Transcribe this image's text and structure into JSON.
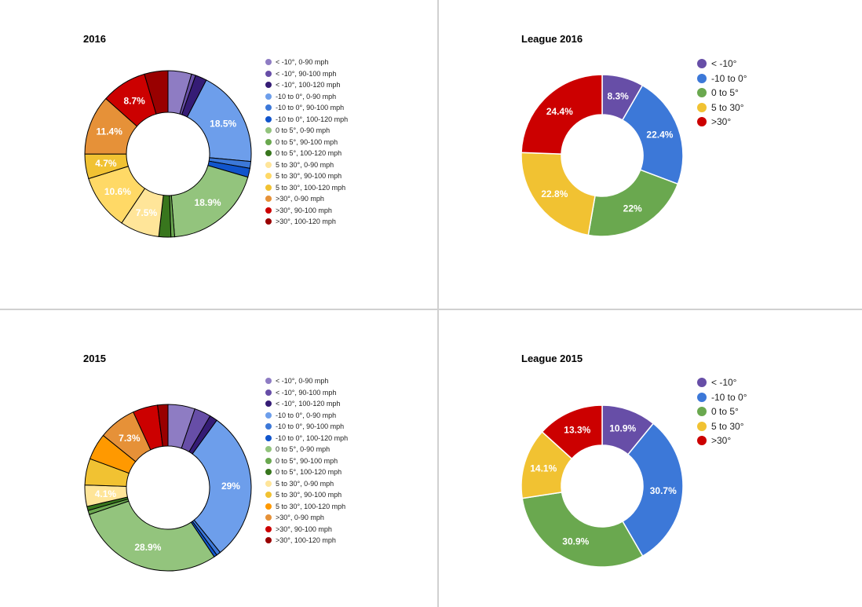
{
  "chart_data": [
    {
      "type": "pie",
      "donut": true,
      "title": "2016",
      "legend_position": "right",
      "slices": [
        {
          "label": "< -10°, 0-90 mph",
          "value": 4.5,
          "color": "#8e7cc3",
          "data_label": ""
        },
        {
          "label": "< -10°, 90-100 mph",
          "value": 0.8,
          "color": "#674ea7",
          "data_label": ""
        },
        {
          "label": "< -10°, 100-120 mph",
          "value": 2.2,
          "color": "#351c75",
          "data_label": ""
        },
        {
          "label": "-10 to 0°, 0-90 mph",
          "value": 18.5,
          "color": "#6d9eeb",
          "data_label": "18.5%"
        },
        {
          "label": "-10 to 0°, 90-100 mph",
          "value": 1.3,
          "color": "#3c78d8",
          "data_label": ""
        },
        {
          "label": "-10 to 0°, 100-120 mph",
          "value": 1.7,
          "color": "#1155cc",
          "data_label": ""
        },
        {
          "label": "0 to 5°, 0-90 mph",
          "value": 18.9,
          "color": "#93c47d",
          "data_label": "18.9%"
        },
        {
          "label": "0 to 5°, 90-100 mph",
          "value": 0.7,
          "color": "#6aa84f",
          "data_label": ""
        },
        {
          "label": "0 to 5°, 100-120 mph",
          "value": 2.3,
          "color": "#38761d",
          "data_label": ""
        },
        {
          "label": "5 to 30°, 0-90 mph",
          "value": 7.5,
          "color": "#ffe599",
          "data_label": "7.5%"
        },
        {
          "label": "5 to 30°, 90-100 mph",
          "value": 10.6,
          "color": "#ffd966",
          "data_label": "10.6%"
        },
        {
          "label": "5 to 30°, 100-120 mph",
          "value": 4.7,
          "color": "#f1c232",
          "data_label": "4.7%"
        },
        {
          "label": ">30°, 0-90 mph",
          "value": 11.4,
          "color": "#e69138",
          "data_label": "11.4%"
        },
        {
          "label": ">30°, 90-100 mph",
          "value": 8.7,
          "color": "#cc0000",
          "data_label": "8.7%"
        },
        {
          "label": ">30°, 100-120 mph",
          "value": 4.5,
          "color": "#990000",
          "data_label": ""
        }
      ]
    },
    {
      "type": "pie",
      "donut": true,
      "title": "League 2016",
      "legend_position": "right",
      "slices": [
        {
          "label": "< -10°",
          "value": 8.3,
          "color": "#674ea7",
          "data_label": "8.3%"
        },
        {
          "label": "-10 to 0°",
          "value": 22.4,
          "color": "#3c78d8",
          "data_label": "22.4%"
        },
        {
          "label": "0 to 5°",
          "value": 22,
          "color": "#6aa84f",
          "data_label": "22%"
        },
        {
          "label": "5 to 30°",
          "value": 22.8,
          "color": "#f1c232",
          "data_label": "22.8%"
        },
        {
          "label": ">30°",
          "value": 24.4,
          "color": "#cc0000",
          "data_label": "24.4%"
        }
      ]
    },
    {
      "type": "pie",
      "donut": true,
      "title": "2015",
      "legend_position": "right",
      "slices": [
        {
          "label": "< -10°, 0-90 mph",
          "value": 5.2,
          "color": "#8e7cc3",
          "data_label": ""
        },
        {
          "label": "< -10°, 90-100 mph",
          "value": 3.2,
          "color": "#674ea7",
          "data_label": ""
        },
        {
          "label": "< -10°, 100-120 mph",
          "value": 1.5,
          "color": "#351c75",
          "data_label": ""
        },
        {
          "label": "-10 to 0°, 0-90 mph",
          "value": 29,
          "color": "#6d9eeb",
          "data_label": "29%"
        },
        {
          "label": "-10 to 0°, 90-100 mph",
          "value": 0.8,
          "color": "#3c78d8",
          "data_label": ""
        },
        {
          "label": "-10 to 0°, 100-120 mph",
          "value": 0.6,
          "color": "#1155cc",
          "data_label": ""
        },
        {
          "label": "0 to 5°, 0-90 mph",
          "value": 28.9,
          "color": "#93c47d",
          "data_label": "28.9%"
        },
        {
          "label": "0 to 5°, 90-100 mph",
          "value": 0.8,
          "color": "#6aa84f",
          "data_label": ""
        },
        {
          "label": "0 to 5°, 100-120 mph",
          "value": 0.8,
          "color": "#38761d",
          "data_label": ""
        },
        {
          "label": "5 to 30°, 0-90 mph",
          "value": 4.1,
          "color": "#ffe599",
          "data_label": "4.1%"
        },
        {
          "label": "5 to 30°, 90-100 mph",
          "value": 5.1,
          "color": "#f1c232",
          "data_label": ""
        },
        {
          "label": "5 to 30°, 100-120 mph",
          "value": 5.1,
          "color": "#ff9900",
          "data_label": ""
        },
        {
          "label": ">30°, 0-90 mph",
          "value": 7.3,
          "color": "#e69138",
          "data_label": "7.3%"
        },
        {
          "label": ">30°, 90-100 mph",
          "value": 4.8,
          "color": "#cc0000",
          "data_label": ""
        },
        {
          "label": ">30°, 100-120 mph",
          "value": 2.0,
          "color": "#990000",
          "data_label": ""
        }
      ]
    },
    {
      "type": "pie",
      "donut": true,
      "title": "League 2015",
      "legend_position": "right",
      "slices": [
        {
          "label": "< -10°",
          "value": 10.9,
          "color": "#674ea7",
          "data_label": "10.9%"
        },
        {
          "label": "-10 to 0°",
          "value": 30.7,
          "color": "#3c78d8",
          "data_label": "30.7%"
        },
        {
          "label": "0 to 5°",
          "value": 30.9,
          "color": "#6aa84f",
          "data_label": "30.9%"
        },
        {
          "label": "5 to 30°",
          "value": 14.1,
          "color": "#f1c232",
          "data_label": "14.1%"
        },
        {
          "label": ">30°",
          "value": 13.3,
          "color": "#cc0000",
          "data_label": "13.3%"
        }
      ]
    }
  ]
}
